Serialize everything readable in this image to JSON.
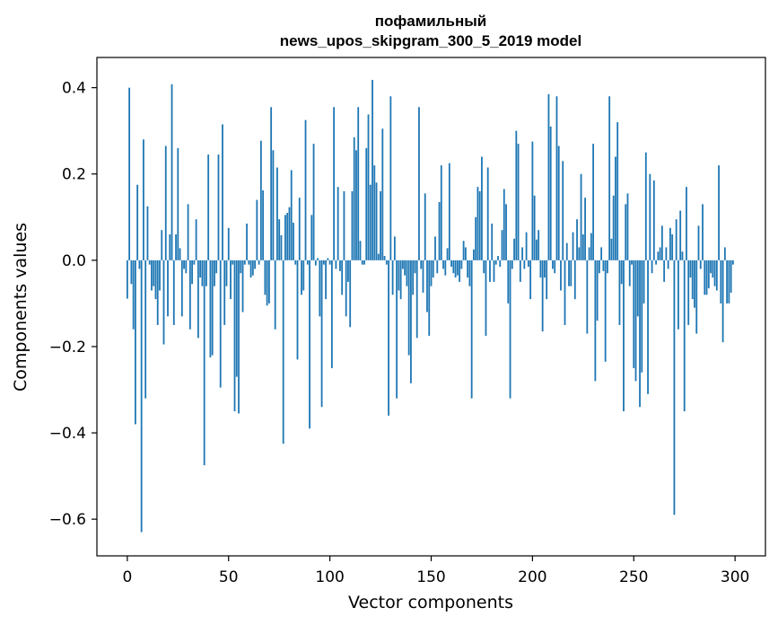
{
  "chart_data": {
    "type": "bar",
    "title_lines": [
      "пофамильный",
      "news_upos_skipgram_300_5_2019 model"
    ],
    "xlabel": "Vector components",
    "ylabel": "Components values",
    "xlim": [
      -15,
      315
    ],
    "ylim": [
      -0.685,
      0.47
    ],
    "xticks": [
      0,
      50,
      100,
      150,
      200,
      250,
      300
    ],
    "yticks": [
      -0.6,
      -0.4,
      -0.2,
      0.0,
      0.2,
      0.4
    ],
    "ytick_labels": [
      "−0.6",
      "−0.4",
      "−0.2",
      "0.0",
      "0.2",
      "0.4"
    ],
    "grid": false,
    "bar_color": "#1f77b4",
    "values": [
      -0.089,
      0.4,
      -0.055,
      -0.16,
      -0.38,
      0.175,
      -0.02,
      -0.63,
      0.28,
      -0.32,
      0.125,
      -0.01,
      -0.07,
      -0.06,
      -0.09,
      -0.15,
      -0.07,
      0.07,
      -0.195,
      0.265,
      -0.13,
      0.06,
      0.408,
      -0.15,
      0.06,
      0.26,
      0.028,
      -0.13,
      -0.02,
      -0.03,
      0.13,
      -0.16,
      -0.055,
      -0.01,
      0.095,
      -0.18,
      -0.04,
      -0.06,
      -0.475,
      -0.06,
      0.245,
      -0.225,
      -0.22,
      -0.06,
      -0.03,
      0.245,
      -0.295,
      0.315,
      -0.15,
      -0.06,
      0.075,
      -0.09,
      -0.01,
      -0.35,
      -0.27,
      -0.355,
      -0.03,
      -0.12,
      -0.01,
      0.085,
      -0.01,
      -0.04,
      -0.035,
      -0.02,
      0.14,
      -0.01,
      0.277,
      0.162,
      -0.08,
      -0.105,
      -0.1,
      0.355,
      0.255,
      -0.16,
      0.215,
      0.095,
      0.058,
      -0.425,
      0.105,
      0.11,
      0.123,
      0.209,
      0.087,
      -0.01,
      -0.23,
      0.145,
      -0.08,
      -0.07,
      0.325,
      -0.01,
      -0.39,
      0.105,
      0.27,
      -0.012,
      0.005,
      -0.13,
      -0.34,
      -0.01,
      -0.09,
      0.005,
      -0.01,
      -0.25,
      0.355,
      -0.02,
      0.17,
      -0.025,
      -0.08,
      0.16,
      -0.13,
      -0.05,
      -0.155,
      0.16,
      0.285,
      0.255,
      0.355,
      0.045,
      -0.01,
      -0.01,
      0.26,
      0.338,
      0.175,
      0.418,
      0.22,
      0.18,
      0.015,
      0.16,
      0.305,
      0.01,
      -0.01,
      -0.36,
      0.38,
      -0.08,
      0.055,
      -0.32,
      -0.07,
      -0.09,
      -0.02,
      -0.035,
      -0.06,
      -0.22,
      -0.285,
      -0.08,
      -0.03,
      -0.18,
      0.355,
      -0.02,
      -0.075,
      0.155,
      -0.12,
      -0.175,
      -0.06,
      -0.04,
      0.055,
      -0.03,
      0.135,
      0.22,
      -0.02,
      -0.035,
      0.028,
      0.225,
      -0.015,
      -0.03,
      -0.04,
      -0.035,
      -0.05,
      -0.02,
      0.045,
      0.03,
      -0.04,
      -0.06,
      -0.32,
      0.025,
      0.1,
      0.17,
      0.16,
      0.24,
      -0.03,
      -0.175,
      0.215,
      -0.05,
      0.085,
      -0.05,
      -0.01,
      0.01,
      -0.015,
      0.07,
      0.165,
      0.13,
      -0.1,
      -0.32,
      -0.02,
      0.05,
      0.3,
      0.27,
      -0.05,
      0.03,
      -0.02,
      0.065,
      -0.015,
      -0.09,
      0.275,
      0.15,
      0.048,
      0.07,
      -0.04,
      -0.165,
      -0.04,
      -0.09,
      0.385,
      0.31,
      -0.02,
      -0.03,
      0.38,
      0.265,
      -0.07,
      0.23,
      -0.15,
      0.04,
      -0.06,
      -0.06,
      0.065,
      -0.09,
      0.095,
      0.03,
      0.2,
      0.06,
      0.145,
      -0.17,
      0.03,
      0.063,
      0.27,
      -0.28,
      -0.14,
      -0.03,
      0.03,
      -0.025,
      -0.235,
      -0.03,
      0.38,
      0.05,
      0.15,
      0.24,
      0.32,
      -0.15,
      -0.055,
      -0.35,
      0.13,
      0.155,
      -0.06,
      -0.01,
      -0.25,
      -0.28,
      -0.13,
      -0.34,
      -0.26,
      -0.1,
      0.25,
      -0.31,
      0.2,
      -0.03,
      0.185,
      -0.01,
      0.02,
      0.03,
      0.08,
      -0.05,
      0.03,
      -0.02,
      0.075,
      0.06,
      -0.59,
      0.095,
      -0.16,
      0.115,
      0.02,
      -0.35,
      0.17,
      -0.15,
      -0.04,
      -0.09,
      -0.11,
      -0.17,
      0.08,
      -0.02,
      0.13,
      -0.08,
      -0.08,
      -0.065,
      -0.03,
      -0.04,
      -0.06,
      -0.07,
      0.22,
      -0.1,
      -0.19,
      0.03,
      -0.1,
      -0.1,
      -0.075,
      -0.01
    ]
  }
}
